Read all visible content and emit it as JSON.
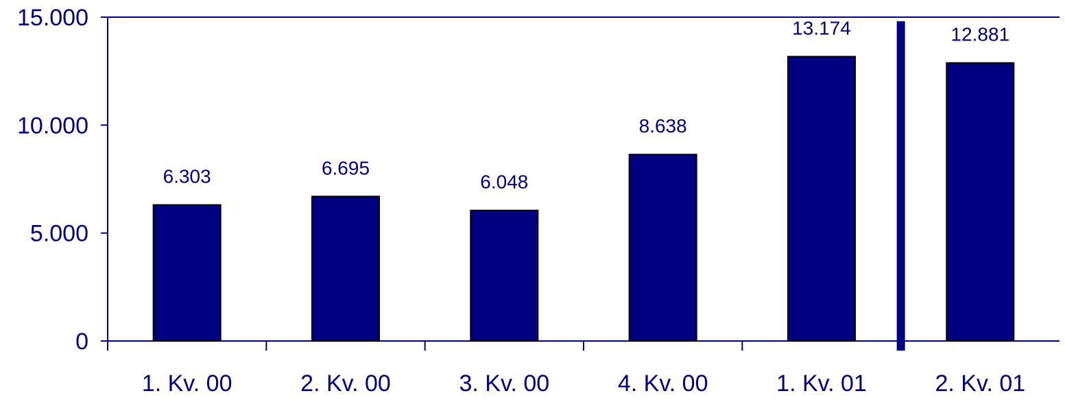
{
  "chart_data": {
    "type": "bar",
    "categories": [
      "1. Kv. 00",
      "2. Kv. 00",
      "3. Kv. 00",
      "4. Kv. 00",
      "1. Kv. 01",
      "2. Kv. 01"
    ],
    "values": [
      6303,
      6695,
      6048,
      8638,
      13174,
      12881
    ],
    "value_labels": [
      "6.303",
      "6.695",
      "6.048",
      "8.638",
      "13.174",
      "12.881"
    ],
    "ylim": [
      0,
      15000
    ],
    "yticks": [
      0,
      5000,
      10000,
      15000
    ],
    "ytick_labels": [
      "0",
      "5.000",
      "10.000",
      "15.000"
    ],
    "grid": false,
    "separator_after_category_index": 4,
    "colors": {
      "bar": "#000080",
      "axis": "#000080",
      "text": "#000080",
      "separator": "#000080"
    }
  }
}
